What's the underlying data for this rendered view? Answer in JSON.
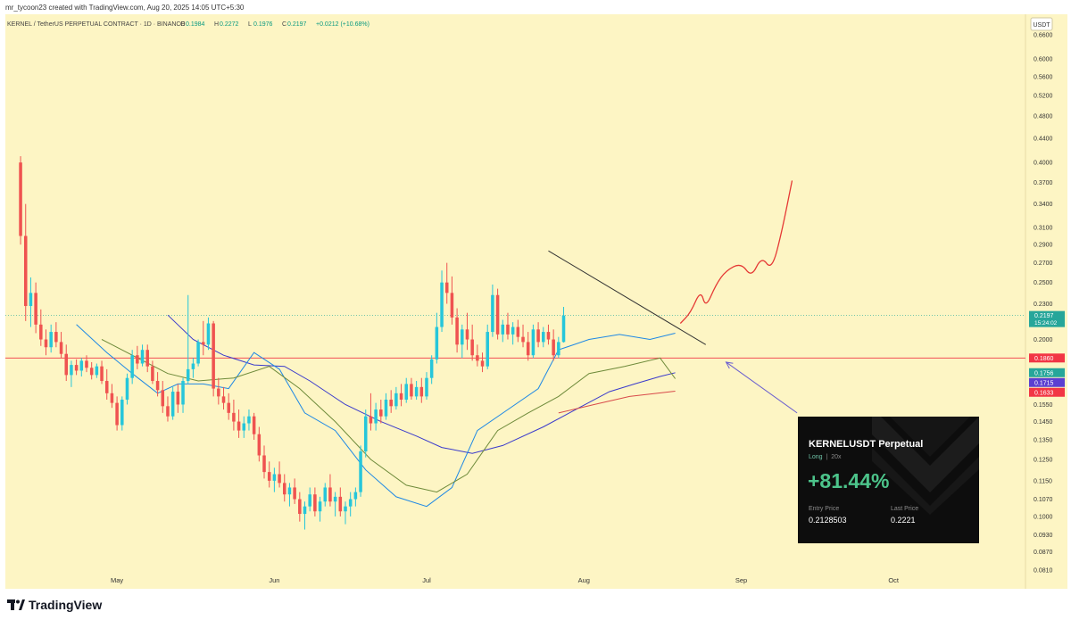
{
  "header": {
    "created_line": "mr_tycoon23 created with TradingView.com, Aug 20, 2025 14:05 UTC+5:30",
    "symbol": "KERNEL / TetherUS PERPETUAL CONTRACT · 1D · BINANCE",
    "ohlc": [
      {
        "k": "O",
        "v": "0.1984"
      },
      {
        "k": "H",
        "v": "0.2272"
      },
      {
        "k": "L",
        "v": "0.1976"
      },
      {
        "k": "C",
        "v": "0.2197"
      }
    ],
    "change": "+0.0212 (+10.68%)"
  },
  "chart_data": {
    "type": "candlestick",
    "currency": "USDT",
    "y_scale": "log",
    "ylim": [
      0.078,
      0.7
    ],
    "y_ticks": [
      "0.6600",
      "0.6000",
      "0.5600",
      "0.5200",
      "0.4800",
      "0.4400",
      "0.4000",
      "0.3700",
      "0.3400",
      "0.3100",
      "0.2900",
      "0.2700",
      "0.2500",
      "0.2300",
      "0.2000",
      "0.1550",
      "0.1450",
      "0.1350",
      "0.1250",
      "0.1150",
      "0.1070",
      "0.1000",
      "0.0930",
      "0.0870",
      "0.0810"
    ],
    "x_start": "2025-04-12",
    "xlim": [
      "2025-04-09",
      "2025-10-27"
    ],
    "x_ticks": [
      {
        "label": "May",
        "date": "2025-05-01"
      },
      {
        "label": "Jun",
        "date": "2025-06-01"
      },
      {
        "label": "Jul",
        "date": "2025-07-01"
      },
      {
        "label": "Aug",
        "date": "2025-08-01"
      },
      {
        "label": "Sep",
        "date": "2025-09-01"
      },
      {
        "label": "Oct",
        "date": "2025-10-01"
      }
    ],
    "price_badges": [
      {
        "label": "0.2197",
        "sub": "15:24:02",
        "value": 0.2197,
        "color": "#26a69a"
      },
      {
        "label": "0.1860",
        "value": 0.186,
        "color": "#f23645"
      },
      {
        "label": "0.1756",
        "value": 0.1756,
        "color": "#26a69a"
      },
      {
        "label": "0.1715",
        "value": 0.1715,
        "color": "#5b3fd1"
      },
      {
        "label": "0.1633",
        "value": 0.1633,
        "color": "#f23645"
      }
    ],
    "horizontal_line": {
      "value": 0.186,
      "color": "#f23645"
    },
    "colors": {
      "up": "#26c6da",
      "down": "#ef5350",
      "background": "#fdf5c4"
    },
    "candles": [
      [
        0.4,
        0.41,
        0.29,
        0.3
      ],
      [
        0.3,
        0.34,
        0.215,
        0.228
      ],
      [
        0.228,
        0.255,
        0.21,
        0.24
      ],
      [
        0.24,
        0.25,
        0.205,
        0.212
      ],
      [
        0.212,
        0.225,
        0.195,
        0.2
      ],
      [
        0.2,
        0.208,
        0.188,
        0.194
      ],
      [
        0.194,
        0.212,
        0.19,
        0.206
      ],
      [
        0.206,
        0.214,
        0.194,
        0.198
      ],
      [
        0.198,
        0.206,
        0.186,
        0.189
      ],
      [
        0.189,
        0.196,
        0.17,
        0.174
      ],
      [
        0.174,
        0.184,
        0.166,
        0.181
      ],
      [
        0.181,
        0.185,
        0.174,
        0.177
      ],
      [
        0.177,
        0.186,
        0.173,
        0.184
      ],
      [
        0.184,
        0.188,
        0.176,
        0.179
      ],
      [
        0.179,
        0.183,
        0.171,
        0.174
      ],
      [
        0.174,
        0.182,
        0.172,
        0.18
      ],
      [
        0.18,
        0.184,
        0.168,
        0.17
      ],
      [
        0.17,
        0.178,
        0.158,
        0.162
      ],
      [
        0.162,
        0.168,
        0.153,
        0.156
      ],
      [
        0.156,
        0.16,
        0.14,
        0.143
      ],
      [
        0.143,
        0.16,
        0.14,
        0.158
      ],
      [
        0.158,
        0.175,
        0.155,
        0.172
      ],
      [
        0.172,
        0.192,
        0.168,
        0.188
      ],
      [
        0.188,
        0.195,
        0.178,
        0.182
      ],
      [
        0.182,
        0.196,
        0.18,
        0.192
      ],
      [
        0.192,
        0.196,
        0.176,
        0.18
      ],
      [
        0.18,
        0.184,
        0.168,
        0.17
      ],
      [
        0.17,
        0.176,
        0.16,
        0.164
      ],
      [
        0.164,
        0.17,
        0.15,
        0.154
      ],
      [
        0.154,
        0.16,
        0.145,
        0.148
      ],
      [
        0.148,
        0.166,
        0.146,
        0.163
      ],
      [
        0.163,
        0.168,
        0.15,
        0.155
      ],
      [
        0.155,
        0.172,
        0.15,
        0.17
      ],
      [
        0.17,
        0.238,
        0.168,
        0.178
      ],
      [
        0.178,
        0.186,
        0.172,
        0.182
      ],
      [
        0.182,
        0.2,
        0.18,
        0.198
      ],
      [
        0.198,
        0.215,
        0.188,
        0.196
      ],
      [
        0.196,
        0.218,
        0.192,
        0.213
      ],
      [
        0.213,
        0.215,
        0.16,
        0.165
      ],
      [
        0.165,
        0.172,
        0.155,
        0.16
      ],
      [
        0.16,
        0.166,
        0.152,
        0.156
      ],
      [
        0.156,
        0.162,
        0.146,
        0.15
      ],
      [
        0.15,
        0.158,
        0.14,
        0.145
      ],
      [
        0.145,
        0.152,
        0.136,
        0.14
      ],
      [
        0.14,
        0.148,
        0.136,
        0.144
      ],
      [
        0.144,
        0.152,
        0.14,
        0.148
      ],
      [
        0.148,
        0.15,
        0.135,
        0.138
      ],
      [
        0.138,
        0.142,
        0.124,
        0.127
      ],
      [
        0.127,
        0.132,
        0.116,
        0.119
      ],
      [
        0.119,
        0.124,
        0.112,
        0.115
      ],
      [
        0.115,
        0.121,
        0.11,
        0.118
      ],
      [
        0.118,
        0.124,
        0.112,
        0.114
      ],
      [
        0.114,
        0.118,
        0.106,
        0.109
      ],
      [
        0.109,
        0.114,
        0.104,
        0.112
      ],
      [
        0.112,
        0.116,
        0.105,
        0.107
      ],
      [
        0.107,
        0.11,
        0.098,
        0.101
      ],
      [
        0.101,
        0.106,
        0.095,
        0.104
      ],
      [
        0.104,
        0.112,
        0.102,
        0.109
      ],
      [
        0.109,
        0.112,
        0.1,
        0.102
      ],
      [
        0.102,
        0.108,
        0.098,
        0.106
      ],
      [
        0.106,
        0.114,
        0.104,
        0.112
      ],
      [
        0.112,
        0.118,
        0.104,
        0.106
      ],
      [
        0.106,
        0.11,
        0.1,
        0.108
      ],
      [
        0.108,
        0.112,
        0.1,
        0.102
      ],
      [
        0.102,
        0.106,
        0.097,
        0.104
      ],
      [
        0.104,
        0.11,
        0.1,
        0.107
      ],
      [
        0.107,
        0.112,
        0.104,
        0.11
      ],
      [
        0.11,
        0.132,
        0.108,
        0.129
      ],
      [
        0.129,
        0.152,
        0.126,
        0.148
      ],
      [
        0.148,
        0.162,
        0.14,
        0.144
      ],
      [
        0.144,
        0.156,
        0.14,
        0.152
      ],
      [
        0.152,
        0.158,
        0.144,
        0.148
      ],
      [
        0.148,
        0.162,
        0.146,
        0.158
      ],
      [
        0.158,
        0.164,
        0.15,
        0.154
      ],
      [
        0.154,
        0.166,
        0.152,
        0.162
      ],
      [
        0.162,
        0.168,
        0.154,
        0.158
      ],
      [
        0.158,
        0.172,
        0.156,
        0.168
      ],
      [
        0.168,
        0.172,
        0.158,
        0.16
      ],
      [
        0.16,
        0.17,
        0.158,
        0.166
      ],
      [
        0.166,
        0.172,
        0.156,
        0.16
      ],
      [
        0.16,
        0.176,
        0.158,
        0.172
      ],
      [
        0.172,
        0.188,
        0.168,
        0.185
      ],
      [
        0.185,
        0.222,
        0.182,
        0.21
      ],
      [
        0.21,
        0.262,
        0.206,
        0.25
      ],
      [
        0.25,
        0.27,
        0.23,
        0.24
      ],
      [
        0.24,
        0.256,
        0.212,
        0.218
      ],
      [
        0.218,
        0.226,
        0.19,
        0.196
      ],
      [
        0.196,
        0.212,
        0.186,
        0.208
      ],
      [
        0.208,
        0.222,
        0.192,
        0.2
      ],
      [
        0.2,
        0.212,
        0.184,
        0.188
      ],
      [
        0.188,
        0.196,
        0.18,
        0.184
      ],
      [
        0.184,
        0.19,
        0.176,
        0.18
      ],
      [
        0.18,
        0.212,
        0.178,
        0.206
      ],
      [
        0.206,
        0.248,
        0.202,
        0.238
      ],
      [
        0.238,
        0.244,
        0.2,
        0.204
      ],
      [
        0.204,
        0.216,
        0.198,
        0.212
      ],
      [
        0.212,
        0.222,
        0.2,
        0.204
      ],
      [
        0.204,
        0.214,
        0.196,
        0.21
      ],
      [
        0.21,
        0.216,
        0.198,
        0.202
      ],
      [
        0.202,
        0.212,
        0.194,
        0.198
      ],
      [
        0.198,
        0.206,
        0.184,
        0.188
      ],
      [
        0.188,
        0.212,
        0.186,
        0.208
      ],
      [
        0.208,
        0.214,
        0.194,
        0.198
      ],
      [
        0.198,
        0.21,
        0.194,
        0.206
      ],
      [
        0.206,
        0.212,
        0.196,
        0.2
      ],
      [
        0.2,
        0.208,
        0.184,
        0.188
      ],
      [
        0.188,
        0.202,
        0.186,
        0.198
      ],
      [
        0.198,
        0.2272,
        0.1976,
        0.2197
      ]
    ],
    "moving_averages": [
      {
        "color": "#3a3acc",
        "points": [
          {
            "date": "2025-05-11",
            "v": 0.22
          },
          {
            "date": "2025-05-16",
            "v": 0.2
          },
          {
            "date": "2025-05-22",
            "v": 0.188
          },
          {
            "date": "2025-05-28",
            "v": 0.181
          },
          {
            "date": "2025-06-03",
            "v": 0.18
          },
          {
            "date": "2025-06-08",
            "v": 0.17
          },
          {
            "date": "2025-06-15",
            "v": 0.155
          },
          {
            "date": "2025-06-22",
            "v": 0.145
          },
          {
            "date": "2025-06-29",
            "v": 0.137
          },
          {
            "date": "2025-07-04",
            "v": 0.131
          },
          {
            "date": "2025-07-10",
            "v": 0.128
          },
          {
            "date": "2025-07-16",
            "v": 0.132
          },
          {
            "date": "2025-07-24",
            "v": 0.142
          },
          {
            "date": "2025-07-31",
            "v": 0.153
          },
          {
            "date": "2025-08-06",
            "v": 0.163
          },
          {
            "date": "2025-08-11",
            "v": 0.168
          },
          {
            "date": "2025-08-16",
            "v": 0.173
          },
          {
            "date": "2025-08-19",
            "v": 0.1756
          }
        ]
      },
      {
        "color": "#d84a4a",
        "points": [
          {
            "date": "2025-07-27",
            "v": 0.15
          },
          {
            "date": "2025-08-03",
            "v": 0.155
          },
          {
            "date": "2025-08-10",
            "v": 0.16
          },
          {
            "date": "2025-08-19",
            "v": 0.1633
          }
        ]
      },
      {
        "color": "#1e88e5",
        "points": [
          {
            "date": "2025-04-23",
            "v": 0.212
          },
          {
            "date": "2025-04-29",
            "v": 0.19
          },
          {
            "date": "2025-05-04",
            "v": 0.175
          },
          {
            "date": "2025-05-09",
            "v": 0.162
          },
          {
            "date": "2025-05-13",
            "v": 0.168
          },
          {
            "date": "2025-05-18",
            "v": 0.168
          },
          {
            "date": "2025-05-23",
            "v": 0.165
          },
          {
            "date": "2025-05-28",
            "v": 0.19
          },
          {
            "date": "2025-06-02",
            "v": 0.178
          },
          {
            "date": "2025-06-07",
            "v": 0.15
          },
          {
            "date": "2025-06-13",
            "v": 0.14
          },
          {
            "date": "2025-06-19",
            "v": 0.12
          },
          {
            "date": "2025-06-25",
            "v": 0.108
          },
          {
            "date": "2025-07-01",
            "v": 0.104
          },
          {
            "date": "2025-07-06",
            "v": 0.112
          },
          {
            "date": "2025-07-11",
            "v": 0.14
          },
          {
            "date": "2025-07-17",
            "v": 0.152
          },
          {
            "date": "2025-07-23",
            "v": 0.165
          },
          {
            "date": "2025-07-27",
            "v": 0.192
          },
          {
            "date": "2025-08-02",
            "v": 0.2
          },
          {
            "date": "2025-08-08",
            "v": 0.204
          },
          {
            "date": "2025-08-14",
            "v": 0.2
          },
          {
            "date": "2025-08-19",
            "v": 0.205
          }
        ]
      },
      {
        "color": "#6e8a3a",
        "points": [
          {
            "date": "2025-04-28",
            "v": 0.2
          },
          {
            "date": "2025-05-04",
            "v": 0.188
          },
          {
            "date": "2025-05-11",
            "v": 0.175
          },
          {
            "date": "2025-05-17",
            "v": 0.17
          },
          {
            "date": "2025-05-24",
            "v": 0.172
          },
          {
            "date": "2025-05-31",
            "v": 0.18
          },
          {
            "date": "2025-06-06",
            "v": 0.165
          },
          {
            "date": "2025-06-13",
            "v": 0.145
          },
          {
            "date": "2025-06-20",
            "v": 0.125
          },
          {
            "date": "2025-06-27",
            "v": 0.113
          },
          {
            "date": "2025-07-03",
            "v": 0.11
          },
          {
            "date": "2025-07-09",
            "v": 0.118
          },
          {
            "date": "2025-07-15",
            "v": 0.14
          },
          {
            "date": "2025-07-21",
            "v": 0.15
          },
          {
            "date": "2025-07-27",
            "v": 0.16
          },
          {
            "date": "2025-08-02",
            "v": 0.175
          },
          {
            "date": "2025-08-09",
            "v": 0.18
          },
          {
            "date": "2025-08-16",
            "v": 0.186
          },
          {
            "date": "2025-08-19",
            "v": 0.1715
          }
        ]
      }
    ],
    "trendline": {
      "color": "#333333",
      "from": {
        "date": "2025-07-25",
        "v": 0.283
      },
      "to": {
        "date": "2025-08-25",
        "v": 0.196
      }
    },
    "projection": {
      "color": "#e53935",
      "points": [
        {
          "date": "2025-08-20",
          "v": 0.213
        },
        {
          "date": "2025-08-22",
          "v": 0.222
        },
        {
          "date": "2025-08-24",
          "v": 0.243
        },
        {
          "date": "2025-08-25",
          "v": 0.226
        },
        {
          "date": "2025-08-27",
          "v": 0.248
        },
        {
          "date": "2025-08-29",
          "v": 0.262
        },
        {
          "date": "2025-09-01",
          "v": 0.27
        },
        {
          "date": "2025-09-03",
          "v": 0.255
        },
        {
          "date": "2025-09-05",
          "v": 0.277
        },
        {
          "date": "2025-09-07",
          "v": 0.262
        },
        {
          "date": "2025-09-09",
          "v": 0.305
        },
        {
          "date": "2025-09-11",
          "v": 0.372
        }
      ]
    },
    "arrow": {
      "color": "#6b5fcf",
      "from": {
        "date": "2025-09-12",
        "v": 0.15
      },
      "to": {
        "date": "2025-08-29",
        "v": 0.183
      }
    }
  },
  "trade_card": {
    "title": "KERNELUSDT Perpetual",
    "side": "Long",
    "leverage": "20x",
    "pnl": "+81.44%",
    "entry_label": "Entry Price",
    "entry_value": "0.2128503",
    "last_label": "Last Price",
    "last_value": "0.2221"
  },
  "footer": {
    "brand": "TradingView"
  }
}
